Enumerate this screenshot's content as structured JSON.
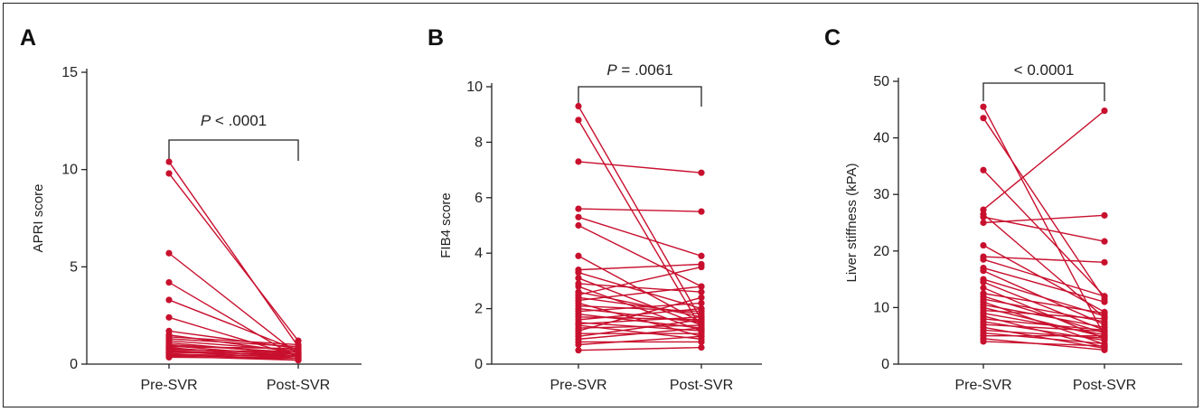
{
  "colors": {
    "series": "#c8102e",
    "axis": "#222222"
  },
  "chart_data": [
    {
      "type": "line",
      "panel_letter": "A",
      "ylabel": "APRI score",
      "xlabel": "",
      "categories": [
        "Pre-SVR",
        "Post-SVR"
      ],
      "ylim": [
        0,
        15
      ],
      "yticks": [
        0,
        5,
        10,
        15
      ],
      "p_value": {
        "prefix": "P",
        "rest": " < .0001"
      },
      "pairs": [
        [
          10.4,
          0.9
        ],
        [
          9.8,
          1.2
        ],
        [
          5.7,
          0.5
        ],
        [
          4.2,
          0.3
        ],
        [
          3.3,
          0.7
        ],
        [
          2.4,
          0.4
        ],
        [
          1.7,
          0.8
        ],
        [
          1.5,
          0.6
        ],
        [
          1.4,
          1.0
        ],
        [
          1.3,
          0.9
        ],
        [
          1.2,
          0.7
        ],
        [
          1.1,
          0.5
        ],
        [
          1.0,
          0.6
        ],
        [
          0.95,
          0.4
        ],
        [
          0.9,
          0.8
        ],
        [
          0.85,
          0.3
        ],
        [
          0.8,
          0.5
        ],
        [
          0.75,
          0.6
        ],
        [
          0.7,
          0.4
        ],
        [
          0.65,
          0.3
        ],
        [
          0.6,
          0.5
        ],
        [
          0.55,
          0.2
        ],
        [
          0.5,
          0.4
        ],
        [
          0.45,
          0.3
        ],
        [
          0.4,
          0.2
        ],
        [
          0.35,
          0.3
        ]
      ]
    },
    {
      "type": "line",
      "panel_letter": "B",
      "ylabel": "FIB4 score",
      "xlabel": "",
      "categories": [
        "Pre-SVR",
        "Post-SVR"
      ],
      "ylim": [
        0,
        10
      ],
      "yticks": [
        0,
        2,
        4,
        6,
        8,
        10
      ],
      "p_value": {
        "prefix": "P",
        "rest": " = .0061"
      },
      "pairs": [
        [
          9.3,
          1.6
        ],
        [
          8.8,
          1.3
        ],
        [
          7.3,
          6.9
        ],
        [
          5.6,
          5.5
        ],
        [
          5.3,
          3.9
        ],
        [
          5.0,
          2.8
        ],
        [
          3.9,
          1.5
        ],
        [
          3.4,
          3.6
        ],
        [
          3.3,
          2.0
        ],
        [
          3.1,
          1.4
        ],
        [
          2.9,
          2.6
        ],
        [
          2.8,
          1.2
        ],
        [
          2.6,
          1.7
        ],
        [
          2.5,
          3.5
        ],
        [
          2.4,
          1.8
        ],
        [
          2.3,
          2.8
        ],
        [
          2.2,
          1.0
        ],
        [
          2.1,
          1.9
        ],
        [
          2.0,
          1.5
        ],
        [
          1.9,
          2.2
        ],
        [
          1.8,
          1.3
        ],
        [
          1.7,
          1.6
        ],
        [
          1.6,
          2.0
        ],
        [
          1.5,
          1.2
        ],
        [
          1.45,
          1.7
        ],
        [
          1.4,
          0.9
        ],
        [
          1.3,
          1.4
        ],
        [
          1.2,
          2.4
        ],
        [
          1.1,
          1.1
        ],
        [
          1.0,
          1.6
        ],
        [
          0.9,
          1.3
        ],
        [
          0.8,
          0.8
        ],
        [
          0.7,
          1.0
        ],
        [
          0.5,
          0.6
        ]
      ]
    },
    {
      "type": "line",
      "panel_letter": "C",
      "ylabel": "Liver stiffness (kPA)",
      "xlabel": "",
      "categories": [
        "Pre-SVR",
        "Post-SVR"
      ],
      "ylim": [
        0,
        50
      ],
      "yticks": [
        0,
        10,
        20,
        30,
        40,
        50
      ],
      "p_value": {
        "prefix": "",
        "rest": "< 0.0001"
      },
      "pairs": [
        [
          45.5,
          5.0
        ],
        [
          43.5,
          11.5
        ],
        [
          34.3,
          12.0
        ],
        [
          27.3,
          44.8
        ],
        [
          26.5,
          8.2
        ],
        [
          26.0,
          21.7
        ],
        [
          25.0,
          26.3
        ],
        [
          21.0,
          9.2
        ],
        [
          19.0,
          18.0
        ],
        [
          18.5,
          12.0
        ],
        [
          17.0,
          11.0
        ],
        [
          16.5,
          7.0
        ],
        [
          15.0,
          8.5
        ],
        [
          14.5,
          6.0
        ],
        [
          13.5,
          4.5
        ],
        [
          12.5,
          9.0
        ],
        [
          12.0,
          5.5
        ],
        [
          11.5,
          7.5
        ],
        [
          11.0,
          3.5
        ],
        [
          10.5,
          6.5
        ],
        [
          10.0,
          4.8
        ],
        [
          9.5,
          8.0
        ],
        [
          9.0,
          5.2
        ],
        [
          8.5,
          3.0
        ],
        [
          8.0,
          6.0
        ],
        [
          7.5,
          4.2
        ],
        [
          7.0,
          5.8
        ],
        [
          6.5,
          2.8
        ],
        [
          6.0,
          4.6
        ],
        [
          5.5,
          3.6
        ],
        [
          5.0,
          5.0
        ],
        [
          4.5,
          2.5
        ],
        [
          4.0,
          3.2
        ]
      ]
    }
  ]
}
